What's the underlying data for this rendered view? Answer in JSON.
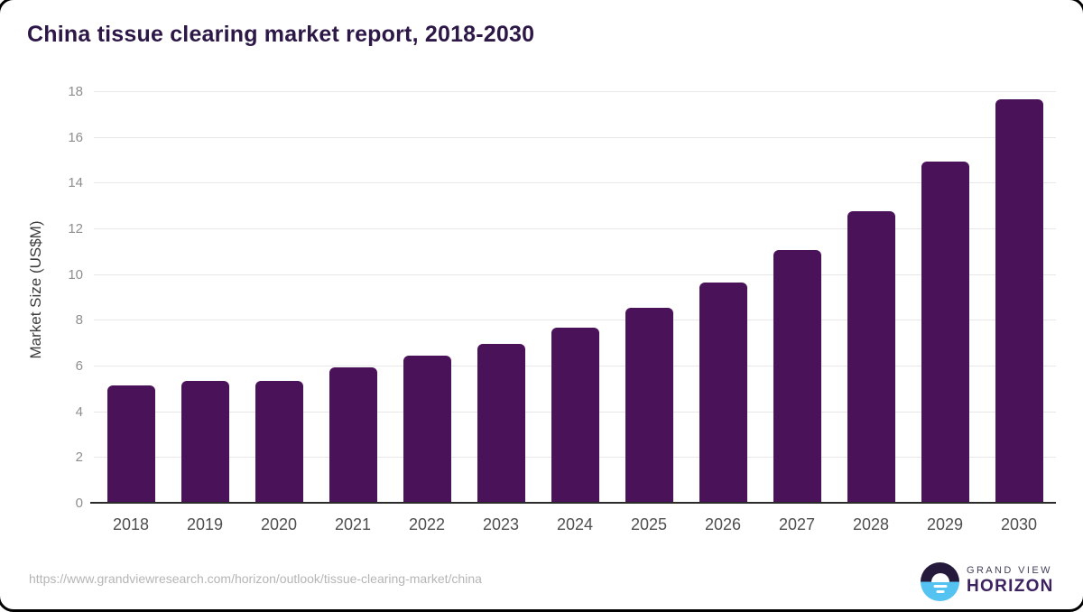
{
  "title": "China tissue clearing market report, 2018-2030",
  "source_url": "https://www.grandviewresearch.com/horizon/outlook/tissue-clearing-market/china",
  "logo": {
    "line1": "GRAND VIEW",
    "line2": "HORIZON"
  },
  "chart_data": {
    "type": "bar",
    "title": "China tissue clearing market report, 2018-2030",
    "categories": [
      "2018",
      "2019",
      "2020",
      "2021",
      "2022",
      "2023",
      "2024",
      "2025",
      "2026",
      "2027",
      "2028",
      "2029",
      "2030"
    ],
    "values": [
      5.1,
      5.3,
      5.3,
      5.9,
      6.4,
      6.9,
      7.6,
      8.5,
      9.6,
      11.0,
      12.7,
      14.9,
      17.6
    ],
    "xlabel": "",
    "ylabel": "Market Size (US$M)",
    "ylim": [
      0,
      18
    ],
    "yticks": [
      0,
      2,
      4,
      6,
      8,
      10,
      12,
      14,
      16,
      18
    ],
    "grid": "horizontal",
    "legend": "none"
  },
  "colors": {
    "bar": "#4a1259",
    "title": "#2c1747",
    "axis_title": "#3d3d3d",
    "axis_label": "#4f4f4f",
    "tick_label": "#8e8e8e",
    "gridline": "#e7e7e7",
    "axis_line": "#2b2b2b",
    "url_text": "#b5b5b5",
    "logo_dark": "#261a3c",
    "logo_blue": "#55c3f1",
    "logo_gray": "#46405c",
    "logo_text": "#3c2260"
  }
}
